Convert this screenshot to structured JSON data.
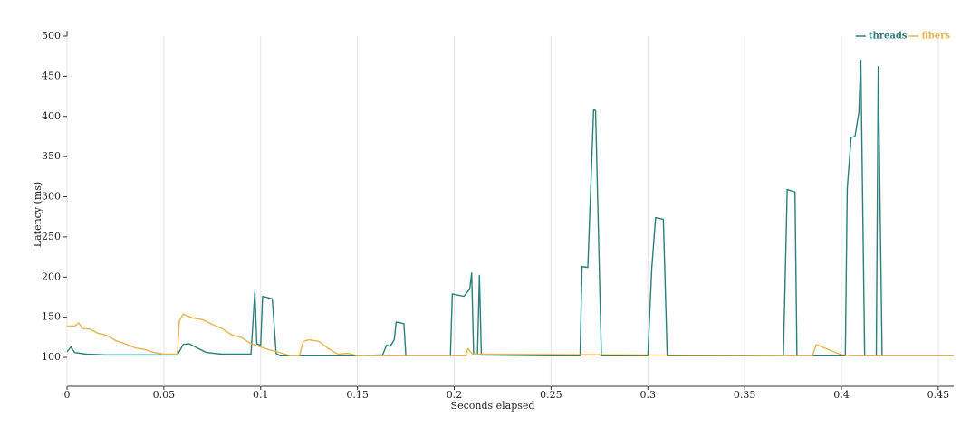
{
  "chart_data": {
    "type": "line",
    "x_label": "Seconds elapsed",
    "y_label": "Latency (ms)",
    "xlim": [
      0,
      0.458
    ],
    "ylim": [
      64,
      500
    ],
    "xticks": [
      0,
      0.05,
      0.1,
      0.15,
      0.2,
      0.25,
      0.3,
      0.35,
      0.4,
      0.45
    ],
    "yticks": [
      100,
      150,
      200,
      250,
      300,
      350,
      400,
      450,
      500
    ],
    "grid": "x",
    "legend": "top-right",
    "series": [
      {
        "name": "threads",
        "color": "#2a7f7a",
        "x": [
          0,
          0.002,
          0.004,
          0.01,
          0.02,
          0.03,
          0.04,
          0.05,
          0.057,
          0.06,
          0.063,
          0.067,
          0.072,
          0.08,
          0.09,
          0.095,
          0.097,
          0.098,
          0.1,
          0.101,
          0.106,
          0.108,
          0.11,
          0.15,
          0.163,
          0.165,
          0.167,
          0.169,
          0.17,
          0.174,
          0.175,
          0.198,
          0.199,
          0.205,
          0.208,
          0.209,
          0.21,
          0.212,
          0.213,
          0.214,
          0.25,
          0.265,
          0.266,
          0.269,
          0.272,
          0.273,
          0.276,
          0.3,
          0.302,
          0.304,
          0.308,
          0.31,
          0.37,
          0.372,
          0.376,
          0.377,
          0.4,
          0.402,
          0.403,
          0.405,
          0.407,
          0.409,
          0.41,
          0.412,
          0.418,
          0.419,
          0.421,
          0.45,
          0.458
        ],
        "values": [
          107,
          113,
          106,
          104,
          103,
          103,
          103,
          103,
          103,
          116,
          117,
          112,
          106,
          104,
          104,
          104,
          182,
          117,
          115,
          176,
          173,
          105,
          102,
          102,
          103,
          115,
          114,
          122,
          144,
          142,
          102,
          102,
          179,
          176,
          185,
          205,
          104,
          103,
          202,
          103,
          102,
          102,
          213,
          212,
          409,
          407,
          102,
          102,
          210,
          274,
          272,
          102,
          102,
          309,
          306,
          102,
          102,
          102,
          310,
          374,
          375,
          405,
          470,
          102,
          102,
          462,
          102,
          102,
          102
        ]
      },
      {
        "name": "fibers",
        "color": "#e5b550",
        "x": [
          0,
          0.004,
          0.006,
          0.008,
          0.012,
          0.016,
          0.02,
          0.025,
          0.03,
          0.035,
          0.04,
          0.045,
          0.05,
          0.057,
          0.058,
          0.06,
          0.065,
          0.07,
          0.075,
          0.08,
          0.085,
          0.09,
          0.095,
          0.1,
          0.105,
          0.11,
          0.115,
          0.12,
          0.122,
          0.125,
          0.13,
          0.135,
          0.14,
          0.145,
          0.15,
          0.2,
          0.206,
          0.207,
          0.209,
          0.21,
          0.38,
          0.385,
          0.387,
          0.4,
          0.405,
          0.458
        ],
        "values": [
          139,
          139,
          143,
          136,
          135,
          130,
          128,
          121,
          117,
          112,
          110,
          106,
          104,
          104,
          145,
          154,
          149,
          147,
          141,
          136,
          128,
          125,
          117,
          113,
          109,
          106,
          102,
          102,
          120,
          122,
          120,
          111,
          104,
          105,
          102,
          102,
          102,
          111,
          105,
          104,
          102,
          102,
          116,
          103,
          102,
          102
        ]
      }
    ]
  }
}
